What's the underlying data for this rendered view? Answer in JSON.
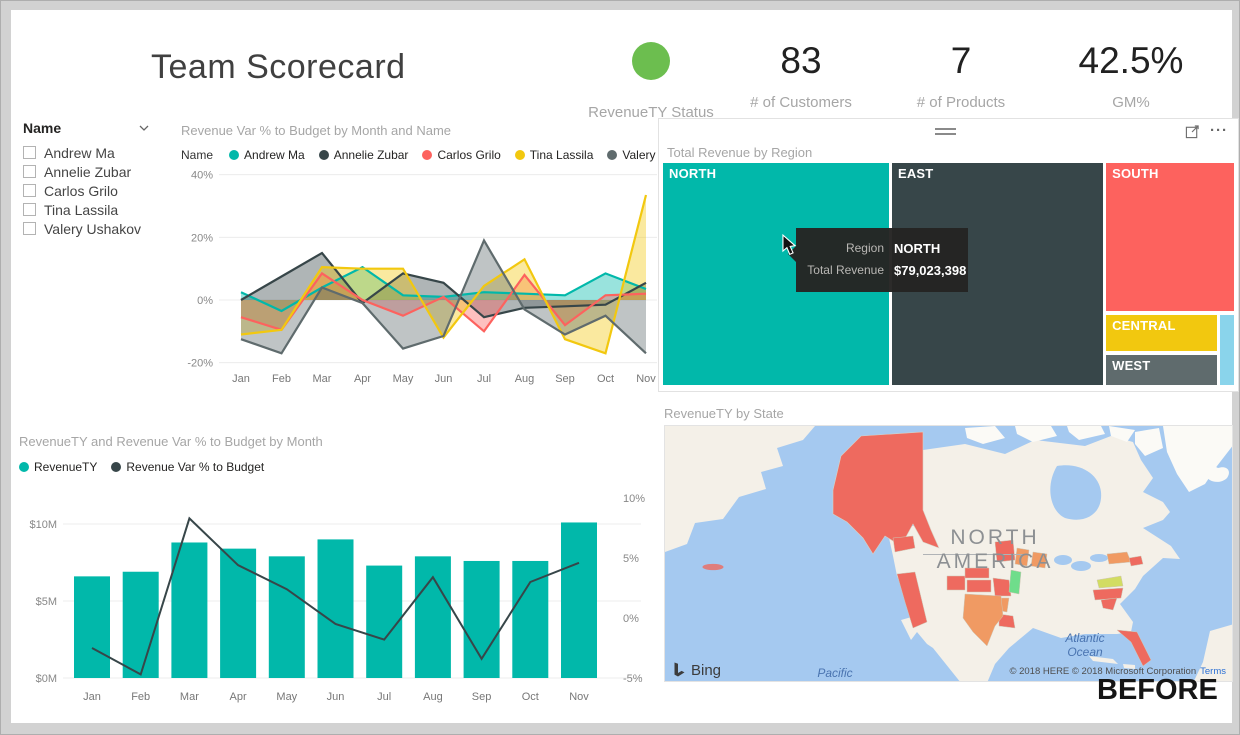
{
  "header": {
    "title": "Team Scorecard",
    "kpis": [
      {
        "type": "status",
        "label": "RevenueTY Status"
      },
      {
        "type": "number",
        "value": "83",
        "label": "# of Customers"
      },
      {
        "type": "number",
        "value": "7",
        "label": "# of Products"
      },
      {
        "type": "number",
        "value": "42.5%",
        "label": "GM%"
      }
    ]
  },
  "slicer": {
    "title": "Name",
    "items": [
      "Andrew Ma",
      "Annelie Zubar",
      "Carlos Grilo",
      "Tina Lassila",
      "Valery Ushakov"
    ]
  },
  "annotation": "BEFORE",
  "colors": {
    "teal": "#01B8AA",
    "dark": "#374649",
    "red": "#FD625E",
    "yellow": "#F2C80F",
    "gray": "#5F6B6D",
    "lightblue": "#8AD4EB",
    "green_status": "#6CBE4F",
    "water": "#a5c9f0",
    "land": "#f4f0e8",
    "land_light": "#fbfaf6",
    "state_red": "#ee6a5f",
    "state_orange": "#f09a63",
    "state_green": "#6fdd8b",
    "state_yellowgreen": "#d2dc62"
  },
  "chart_data": [
    {
      "type": "area",
      "title": "Revenue Var % to Budget by Month and Name",
      "legend_title": "Name",
      "x": [
        "Jan",
        "Feb",
        "Mar",
        "Apr",
        "May",
        "Jun",
        "Jul",
        "Aug",
        "Sep",
        "Oct",
        "Nov"
      ],
      "yticks": [
        {
          "label": "40%",
          "v": 40
        },
        {
          "label": "20%",
          "v": 20
        },
        {
          "label": "0%",
          "v": 0
        },
        {
          "label": "-20%",
          "v": -20
        }
      ],
      "ylim": [
        -24,
        44
      ],
      "series": [
        {
          "name": "Andrew Ma",
          "color": "#01B8AA",
          "values": [
            2.5,
            -3.5,
            4,
            10.5,
            1.5,
            1,
            2.5,
            2,
            1.5,
            8.5,
            3.5
          ]
        },
        {
          "name": "Annelie Zubar",
          "color": "#374649",
          "values": [
            0,
            7.5,
            15,
            -1,
            8.5,
            5.5,
            -5.5,
            -2.5,
            -2,
            -1.5,
            5.5
          ]
        },
        {
          "name": "Carlos Grilo",
          "color": "#FD625E",
          "values": [
            -5.5,
            -9.5,
            8.5,
            0,
            -5,
            1,
            -10,
            8,
            -8,
            1.5,
            2
          ]
        },
        {
          "name": "Tina Lassila",
          "color": "#F2C80F",
          "values": [
            -11,
            -9.5,
            10.5,
            10,
            10,
            -12,
            4.5,
            13,
            -12.5,
            -17,
            33.5
          ]
        },
        {
          "name": "Valery Ushakov",
          "color": "#5F6B6D",
          "values": [
            -12.5,
            -17,
            4,
            -1,
            -15.5,
            -11.5,
            19,
            -3,
            -11,
            -5,
            -17
          ]
        }
      ]
    },
    {
      "type": "treemap",
      "title": "Total Revenue by Region",
      "note": "NORTH value exact from tooltip; other values estimated from tile areas",
      "tiles": [
        {
          "label": "NORTH",
          "color": "#01B8AA",
          "value": 79023398,
          "rect_pct": [
            0,
            0,
            39.5,
            100
          ]
        },
        {
          "label": "EAST",
          "color": "#374649",
          "value": 73900000,
          "rect_pct": [
            40.1,
            0,
            36.9,
            100
          ]
        },
        {
          "label": "SOUTH",
          "color": "#FD625E",
          "value": 30500000,
          "rect_pct": [
            77.6,
            0,
            22.4,
            66.8
          ]
        },
        {
          "label": "CENTRAL",
          "color": "#F2C80F",
          "value": 6600000,
          "rect_pct": [
            77.6,
            68.3,
            19.5,
            16.5
          ]
        },
        {
          "label": "WEST",
          "color": "#5F6B6D",
          "value": 5500000,
          "rect_pct": [
            77.6,
            86.3,
            19.5,
            13.7
          ]
        },
        {
          "label": "",
          "color": "#8AD4EB",
          "value": 1600000,
          "rect_pct": [
            97.6,
            68.3,
            2.4,
            31.7
          ]
        }
      ],
      "hovered_tile": "NORTH",
      "tooltip": {
        "rows": [
          [
            "Region",
            "NORTH"
          ],
          [
            "Total Revenue",
            "$79,023,398"
          ]
        ]
      }
    },
    {
      "type": "combo_bar_line",
      "title": "RevenueTY and Revenue Var % to Budget by Month",
      "categories": [
        "Jan",
        "Feb",
        "Mar",
        "Apr",
        "May",
        "Jun",
        "Jul",
        "Aug",
        "Sep",
        "Oct",
        "Nov"
      ],
      "series": [
        {
          "name": "RevenueTY",
          "kind": "bar",
          "color": "#01B8AA",
          "unit": "$M",
          "values": [
            6.6,
            6.9,
            8.8,
            8.4,
            7.9,
            9.0,
            7.3,
            7.9,
            7.6,
            7.6,
            10.1
          ]
        },
        {
          "name": "Revenue Var % to Budget",
          "kind": "line",
          "color": "#374649",
          "unit": "%",
          "values": [
            -2.5,
            -4.7,
            8.3,
            4.4,
            2.4,
            -0.5,
            -1.8,
            3.4,
            -3.4,
            3.0,
            4.6
          ]
        }
      ],
      "left_axis": {
        "ticks": [
          {
            "label": "$0M",
            "v": 0
          },
          {
            "label": "$5M",
            "v": 5
          },
          {
            "label": "$10M",
            "v": 10
          }
        ]
      },
      "right_axis": {
        "ticks": [
          {
            "label": "-5%",
            "v": -5
          },
          {
            "label": "0%",
            "v": 0
          },
          {
            "label": "5%",
            "v": 5
          },
          {
            "label": "10%",
            "v": 10
          }
        ]
      }
    },
    {
      "type": "map",
      "title": "RevenueTY by State",
      "basemap_logo": "Bing",
      "area_label": [
        "NORTH",
        "AMERICA"
      ],
      "ocean_labels": {
        "pacific": [
          "Pacific",
          "Ocean"
        ],
        "atlantic": [
          "Atlantic",
          "Ocean"
        ]
      },
      "attribution": "© 2018 HERE © 2018 Microsoft Corporation",
      "terms_link": "Terms",
      "highlighted_states": [
        {
          "state": "Alaska",
          "color": "red"
        },
        {
          "state": "Washington",
          "color": "red"
        },
        {
          "state": "California",
          "color": "red"
        },
        {
          "state": "Minnesota",
          "color": "red"
        },
        {
          "state": "Wisconsin",
          "color": "orange"
        },
        {
          "state": "Michigan",
          "color": "orange"
        },
        {
          "state": "Colorado",
          "color": "red"
        },
        {
          "state": "Nebraska",
          "color": "red"
        },
        {
          "state": "Kansas",
          "color": "red"
        },
        {
          "state": "Missouri",
          "color": "red"
        },
        {
          "state": "Illinois",
          "color": "green"
        },
        {
          "state": "Arkansas",
          "color": "orange"
        },
        {
          "state": "Louisiana",
          "color": "red"
        },
        {
          "state": "Texas",
          "color": "orange"
        },
        {
          "state": "New York",
          "color": "orange"
        },
        {
          "state": "Massachusetts",
          "color": "red"
        },
        {
          "state": "Virginia",
          "color": "yellow-green"
        },
        {
          "state": "North Carolina",
          "color": "red"
        },
        {
          "state": "South Carolina",
          "color": "red"
        },
        {
          "state": "Florida",
          "color": "red"
        }
      ]
    }
  ]
}
